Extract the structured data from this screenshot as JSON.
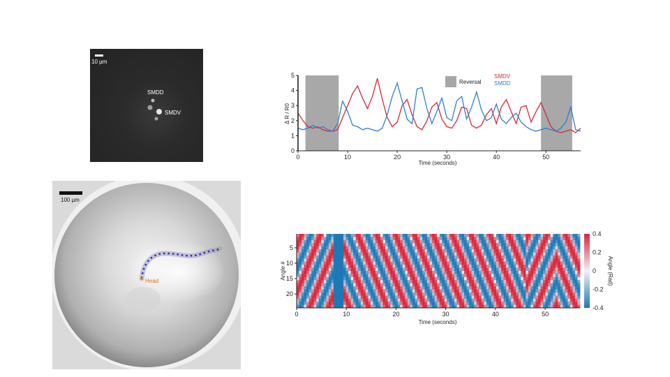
{
  "fluorescence_image": {
    "scale_bar_label": "10 µm",
    "labels": [
      "SMDD",
      "SMDV"
    ]
  },
  "arena_image": {
    "scale_bar_label": "100 µm",
    "head_label": "Head",
    "colors": {
      "head": "#e8731a",
      "body_points": "#2a2ad8",
      "body_shadow": "#9a9ab0"
    }
  },
  "chart_data": [
    {
      "type": "line",
      "xlabel": "Time (seconds)",
      "ylabel": "Δ R / R0",
      "xlim": [
        0,
        57
      ],
      "ylim": [
        0,
        5
      ],
      "xticks": [
        0,
        10,
        20,
        30,
        40,
        50
      ],
      "yticks": [
        0,
        1,
        2,
        3,
        4,
        5
      ],
      "grid": false,
      "legend_placement": "top-right",
      "shaded_regions": [
        {
          "name": "Reversal",
          "x": [
            1.5,
            8.2
          ],
          "color": "#a8a8a8"
        },
        {
          "name": "Reversal",
          "x": [
            49.0,
            55.3
          ],
          "color": "#a8a8a8"
        }
      ],
      "legend_patch_label": "Reversal",
      "series": [
        {
          "name": "SMDV",
          "color": "#d62839",
          "x": [
            0,
            1,
            2,
            3,
            4,
            5,
            6,
            7,
            8,
            9,
            10,
            11,
            12,
            13,
            14,
            15,
            16,
            17,
            18,
            19,
            20,
            21,
            22,
            23,
            24,
            25,
            26,
            27,
            28,
            29,
            30,
            31,
            32,
            33,
            34,
            35,
            36,
            37,
            38,
            39,
            40,
            41,
            42,
            43,
            44,
            45,
            46,
            47,
            48,
            49,
            50,
            51,
            52,
            53,
            54,
            55,
            56,
            57
          ],
          "values": [
            2.5,
            2.0,
            1.6,
            1.5,
            1.6,
            1.4,
            1.3,
            1.3,
            1.4,
            2.2,
            3.0,
            3.8,
            4.3,
            3.5,
            2.8,
            3.6,
            4.8,
            3.4,
            2.2,
            1.6,
            1.9,
            3.0,
            3.4,
            2.4,
            1.6,
            1.4,
            2.0,
            2.9,
            3.2,
            2.1,
            1.6,
            1.5,
            2.0,
            2.9,
            2.8,
            1.7,
            1.5,
            1.7,
            2.4,
            2.8,
            1.8,
            2.9,
            3.4,
            2.6,
            1.8,
            2.9,
            3.0,
            1.9,
            2.6,
            3.2,
            2.4,
            1.6,
            1.3,
            1.2,
            1.3,
            1.4,
            1.2,
            1.5
          ]
        },
        {
          "name": "SMDD",
          "color": "#2f7fc9",
          "x": [
            0,
            1,
            2,
            3,
            4,
            5,
            6,
            7,
            8,
            9,
            10,
            11,
            12,
            13,
            14,
            15,
            16,
            17,
            18,
            19,
            20,
            21,
            22,
            23,
            24,
            25,
            26,
            27,
            28,
            29,
            30,
            31,
            32,
            33,
            34,
            35,
            36,
            37,
            38,
            39,
            40,
            41,
            42,
            43,
            44,
            45,
            46,
            47,
            48,
            49,
            50,
            51,
            52,
            53,
            54,
            55,
            56,
            57
          ],
          "values": [
            1.5,
            1.4,
            1.5,
            1.7,
            1.5,
            1.6,
            1.4,
            1.3,
            1.8,
            3.3,
            2.6,
            1.7,
            1.6,
            1.4,
            1.5,
            1.4,
            1.3,
            1.5,
            2.4,
            3.6,
            4.5,
            3.3,
            2.1,
            1.8,
            4.1,
            4.2,
            2.8,
            1.8,
            2.6,
            3.5,
            2.2,
            2.0,
            3.3,
            3.6,
            2.1,
            2.9,
            3.9,
            2.7,
            2.0,
            2.2,
            3.1,
            2.1,
            1.8,
            2.2,
            2.5,
            1.9,
            1.6,
            1.4,
            1.3,
            1.4,
            1.5,
            1.4,
            1.3,
            1.5,
            1.9,
            2.9,
            1.4,
            1.3
          ]
        }
      ]
    },
    {
      "type": "heatmap",
      "xlabel": "Time (seconds)",
      "ylabel": "Angle #",
      "xlim": [
        0,
        57
      ],
      "ylim": [
        1,
        24
      ],
      "xticks": [
        0,
        10,
        20,
        30,
        40,
        50
      ],
      "yticks": [
        5,
        10,
        15,
        20
      ],
      "colorbar": {
        "label": "Angle (Rad)",
        "range": [
          -0.4,
          0.4
        ],
        "ticks": [
          "0.4",
          "0.2",
          "0",
          "-0.2",
          "-0.4"
        ],
        "low_color": "#1f78b4",
        "mid_color": "#f2f2f2",
        "high_color": "#d7263d"
      },
      "description_rows": 24,
      "wave_pattern": [
        {
          "t_range": [
            0,
            7.5
          ],
          "direction": "backward"
        },
        {
          "t_range": [
            7.5,
            9.5
          ],
          "state": "uniform-negative"
        },
        {
          "t_range": [
            9.5,
            46
          ],
          "direction": "forward"
        },
        {
          "t_range": [
            46,
            52
          ],
          "direction": "backward"
        },
        {
          "t_range": [
            52,
            57
          ],
          "direction": "forward"
        }
      ]
    }
  ]
}
